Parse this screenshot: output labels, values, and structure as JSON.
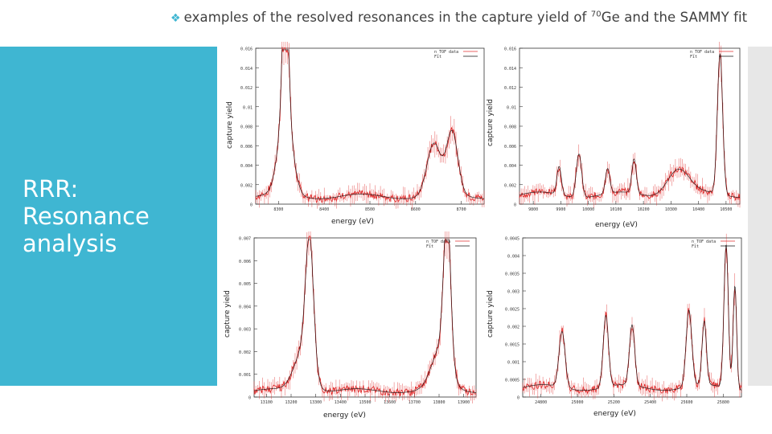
{
  "slide": {
    "title_pre": "examples of the resolved resonances in the capture yield of ",
    "title_sup": "70",
    "title_post": "Ge and the SAMMY fit",
    "side_title": "RRR: Resonance analysis"
  },
  "colors": {
    "accent": "#3fb6d2",
    "data": "#e03030",
    "fit": "#111111"
  },
  "icons": {
    "bullet": "bullet-icon"
  },
  "plots": [
    {
      "ylabel": "capture yield",
      "xlabel": "energy (eV)",
      "legend": [
        "n_TOF data",
        "Fit"
      ],
      "yticks": [
        "0.016",
        "0.014",
        "0.012",
        "0.01",
        "0.008",
        "0.006",
        "0.004",
        "0.002",
        "0"
      ],
      "xticks": [
        "8300",
        "8400",
        "8500",
        "8600",
        "8700"
      ]
    },
    {
      "ylabel": "capture yield",
      "xlabel": "energy (eV)",
      "legend": [
        "n_TOF data",
        "Fit"
      ],
      "yticks": [
        "0.016",
        "0.014",
        "0.012",
        "0.01",
        "0.008",
        "0.006",
        "0.004",
        "0.002",
        "0"
      ],
      "xticks": [
        "9800",
        "9900",
        "10000",
        "10100",
        "10200",
        "10300",
        "10400",
        "10500"
      ]
    },
    {
      "ylabel": "capture yield",
      "xlabel": "energy (eV)",
      "legend": [
        "n_TOF data",
        "Fit"
      ],
      "yticks": [
        "0.007",
        "0.006",
        "0.005",
        "0.004",
        "0.003",
        "0.002",
        "0.001",
        "0"
      ],
      "xticks": [
        "13100",
        "13200",
        "13300",
        "13400",
        "13500",
        "13600",
        "13700",
        "13800",
        "13900"
      ]
    },
    {
      "ylabel": "capture yield",
      "xlabel": "energy (eV)",
      "legend": [
        "n_TOF data",
        "Fit"
      ],
      "yticks": [
        "0.0045",
        "0.004",
        "0.0035",
        "0.003",
        "0.0025",
        "0.002",
        "0.0015",
        "0.001",
        "0.0005",
        "0"
      ],
      "xticks": [
        "24800",
        "25000",
        "25200",
        "25400",
        "25600",
        "25800"
      ]
    }
  ]
}
